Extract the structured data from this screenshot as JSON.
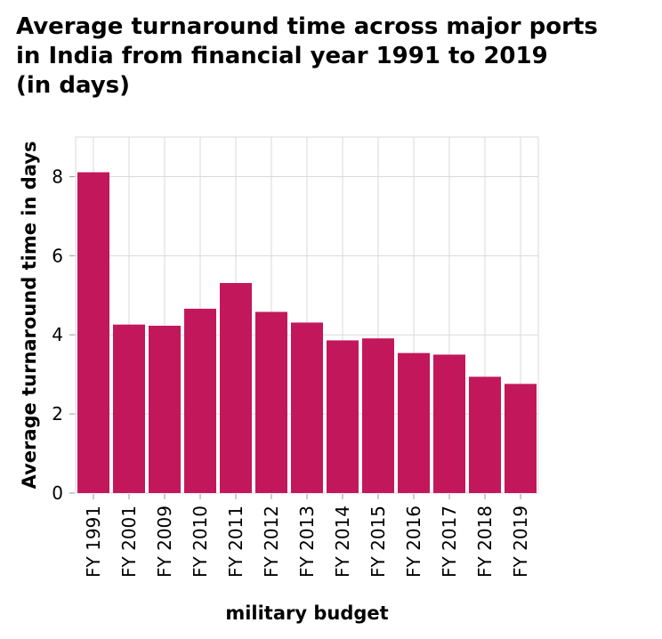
{
  "chart_data": {
    "type": "bar",
    "title_lines": [
      "Average turnaround time across major ports",
      "in India from financial year 1991 to 2019",
      "(in days)"
    ],
    "xlabel": "military budget",
    "ylabel": "Average turnaround time in days",
    "categories": [
      "FY 1991",
      "FY 2001",
      "FY 2009",
      "FY 2010",
      "FY 2011",
      "FY 2012",
      "FY 2013",
      "FY 2014",
      "FY 2015",
      "FY 2016",
      "FY 2017",
      "FY 2018",
      "FY 2019"
    ],
    "values": [
      8.11,
      4.26,
      4.23,
      4.66,
      5.31,
      4.58,
      4.31,
      3.86,
      3.91,
      3.54,
      3.5,
      2.94,
      2.76
    ],
    "ylim": [
      0,
      9
    ],
    "yticks": [
      0,
      2,
      4,
      6,
      8
    ],
    "grid": true,
    "bar_color": "#c2185b",
    "grid_color": "#d9d9d9"
  }
}
